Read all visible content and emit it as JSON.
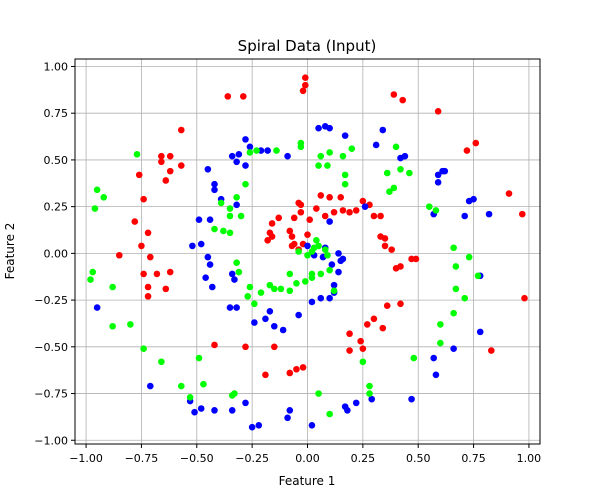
{
  "chart_data": {
    "type": "scatter",
    "title": "Spiral Data (Input)",
    "xlabel": "Feature 1",
    "ylabel": "Feature 2",
    "xlim": [
      -1.05,
      1.05
    ],
    "ylim": [
      -1.02,
      1.04
    ],
    "xticks": [
      -1.0,
      -0.75,
      -0.5,
      -0.25,
      0.0,
      0.25,
      0.5,
      0.75,
      1.0
    ],
    "xtick_labels": [
      "−1.00",
      "−0.75",
      "−0.50",
      "−0.25",
      "0.00",
      "0.25",
      "0.50",
      "0.75",
      "1.00"
    ],
    "yticks": [
      -1.0,
      -0.75,
      -0.5,
      -0.25,
      0.0,
      0.25,
      0.5,
      0.75,
      1.0
    ],
    "ytick_labels": [
      "−1.00",
      "−0.75",
      "−0.50",
      "−0.25",
      "0.00",
      "0.25",
      "0.50",
      "0.75",
      "1.00"
    ],
    "grid": true,
    "legend": "none",
    "series": [
      {
        "color": "#ff0000",
        "points": [
          [
            -0.01,
            0.94
          ],
          [
            -0.01,
            0.9
          ],
          [
            -0.02,
            0.87
          ],
          [
            -0.36,
            0.84
          ],
          [
            -0.29,
            0.84
          ],
          [
            0.39,
            0.85
          ],
          [
            0.43,
            0.82
          ],
          [
            0.59,
            0.76
          ],
          [
            -0.57,
            0.66
          ],
          [
            0.76,
            0.59
          ],
          [
            0.72,
            0.55
          ],
          [
            -0.66,
            0.52
          ],
          [
            -0.62,
            0.52
          ],
          [
            -0.66,
            0.49
          ],
          [
            -0.57,
            0.47
          ],
          [
            -0.62,
            0.44
          ],
          [
            -0.76,
            0.42
          ],
          [
            -0.64,
            0.39
          ],
          [
            0.91,
            0.32
          ],
          [
            -0.74,
            0.29
          ],
          [
            0.06,
            0.31
          ],
          [
            -0.04,
            0.27
          ],
          [
            0.1,
            0.3
          ],
          [
            0.15,
            0.3
          ],
          [
            0.25,
            0.28
          ],
          [
            0.28,
            0.26
          ],
          [
            0.22,
            0.23
          ],
          [
            0.16,
            0.23
          ],
          [
            -0.03,
            0.26
          ],
          [
            0.04,
            0.24
          ],
          [
            0.12,
            0.22
          ],
          [
            0.19,
            0.22
          ],
          [
            0.3,
            0.2
          ],
          [
            0.33,
            0.2
          ],
          [
            0.08,
            0.2
          ],
          [
            -0.03,
            0.22
          ],
          [
            0.01,
            0.18
          ],
          [
            -0.06,
            0.19
          ],
          [
            -0.13,
            0.19
          ],
          [
            -0.16,
            0.16
          ],
          [
            -0.08,
            0.12
          ],
          [
            -0.17,
            0.11
          ],
          [
            0.0,
            0.1
          ],
          [
            -0.16,
            0.09
          ],
          [
            -0.18,
            0.07
          ],
          [
            -0.07,
            0.09
          ],
          [
            -0.06,
            0.05
          ],
          [
            -0.07,
            0.04
          ],
          [
            -0.02,
            0.05
          ],
          [
            -0.04,
            0.02
          ],
          [
            0.33,
            0.09
          ],
          [
            0.35,
            0.08
          ],
          [
            0.35,
            0.04
          ],
          [
            0.38,
            0.02
          ],
          [
            0.4,
            -0.08
          ],
          [
            0.42,
            -0.07
          ],
          [
            0.47,
            -0.03
          ],
          [
            0.49,
            -0.03
          ],
          [
            -0.78,
            0.17
          ],
          [
            -0.72,
            0.11
          ],
          [
            -0.75,
            0.04
          ],
          [
            -0.71,
            -0.02
          ],
          [
            -0.85,
            -0.01
          ],
          [
            -0.74,
            -0.11
          ],
          [
            -0.68,
            -0.11
          ],
          [
            -0.62,
            -0.1
          ],
          [
            -0.72,
            -0.18
          ],
          [
            -0.64,
            -0.19
          ],
          [
            -0.72,
            -0.23
          ],
          [
            0.97,
            0.21
          ],
          [
            0.98,
            -0.24
          ],
          [
            0.83,
            -0.52
          ],
          [
            0.36,
            -0.28
          ],
          [
            0.42,
            -0.27
          ],
          [
            0.3,
            -0.35
          ],
          [
            0.27,
            -0.38
          ],
          [
            0.34,
            -0.4
          ],
          [
            0.19,
            -0.43
          ],
          [
            0.24,
            -0.47
          ],
          [
            0.25,
            -0.51
          ],
          [
            0.19,
            -0.52
          ],
          [
            -0.42,
            -0.49
          ],
          [
            -0.28,
            -0.5
          ],
          [
            -0.15,
            -0.5
          ],
          [
            -0.19,
            -0.65
          ],
          [
            -0.08,
            -0.64
          ],
          [
            -0.05,
            -0.62
          ],
          [
            -0.02,
            -0.61
          ]
        ]
      },
      {
        "color": "#0000ff",
        "points": [
          [
            0.08,
            0.68
          ],
          [
            0.1,
            0.67
          ],
          [
            0.05,
            0.67
          ],
          [
            0.17,
            0.63
          ],
          [
            0.34,
            0.66
          ],
          [
            0.31,
            0.58
          ],
          [
            0.44,
            0.52
          ],
          [
            0.42,
            0.51
          ],
          [
            -0.28,
            0.61
          ],
          [
            -0.26,
            0.57
          ],
          [
            -0.21,
            0.55
          ],
          [
            -0.18,
            0.55
          ],
          [
            -0.31,
            0.53
          ],
          [
            -0.34,
            0.52
          ],
          [
            -0.32,
            0.49
          ],
          [
            -0.28,
            0.47
          ],
          [
            -0.45,
            0.45
          ],
          [
            -0.42,
            0.37
          ],
          [
            -0.42,
            0.34
          ],
          [
            -0.39,
            0.29
          ],
          [
            -0.44,
            0.18
          ],
          [
            -0.52,
            0.04
          ],
          [
            -0.48,
            0.05
          ],
          [
            -0.45,
            -0.02
          ],
          [
            -0.44,
            -0.06
          ],
          [
            -0.46,
            -0.13
          ],
          [
            -0.43,
            -0.18
          ],
          [
            -0.34,
            -0.11
          ],
          [
            -0.33,
            -0.14
          ],
          [
            -0.32,
            -0.29
          ],
          [
            -0.35,
            -0.29
          ],
          [
            -0.24,
            -0.37
          ],
          [
            -0.19,
            -0.35
          ],
          [
            -0.17,
            -0.31
          ],
          [
            -0.15,
            -0.39
          ],
          [
            -0.11,
            -0.41
          ],
          [
            -0.04,
            -0.33
          ],
          [
            0.02,
            -0.26
          ],
          [
            0.06,
            -0.24
          ],
          [
            0.1,
            -0.24
          ],
          [
            0.12,
            -0.21
          ],
          [
            0.12,
            -0.17
          ],
          [
            0.14,
            -0.1
          ],
          [
            0.11,
            -0.06
          ],
          [
            0.15,
            -0.04
          ],
          [
            0.16,
            -0.03
          ],
          [
            0.14,
            0.0
          ],
          [
            0.08,
            0.03
          ],
          [
            0.07,
            -0.02
          ],
          [
            0.03,
            -0.01
          ],
          [
            0.0,
            0.04
          ],
          [
            0.57,
            0.21
          ],
          [
            0.61,
            0.44
          ],
          [
            0.62,
            0.44
          ],
          [
            0.59,
            0.42
          ],
          [
            0.59,
            0.38
          ],
          [
            0.71,
            0.2
          ],
          [
            0.75,
            0.29
          ],
          [
            0.73,
            0.28
          ],
          [
            0.82,
            0.21
          ],
          [
            0.78,
            -0.12
          ],
          [
            0.78,
            -0.42
          ],
          [
            0.66,
            -0.51
          ],
          [
            0.57,
            -0.56
          ],
          [
            0.58,
            -0.65
          ],
          [
            0.47,
            -0.78
          ],
          [
            0.29,
            -0.78
          ],
          [
            0.22,
            -0.8
          ],
          [
            0.18,
            -0.84
          ],
          [
            0.17,
            -0.82
          ],
          [
            0.02,
            -0.92
          ],
          [
            -0.09,
            -0.88
          ],
          [
            -0.08,
            -0.84
          ],
          [
            -0.22,
            -0.92
          ],
          [
            -0.25,
            -0.93
          ],
          [
            -0.28,
            -0.8
          ],
          [
            -0.34,
            -0.84
          ],
          [
            -0.42,
            -0.84
          ],
          [
            -0.48,
            -0.83
          ],
          [
            -0.51,
            -0.85
          ],
          [
            -0.53,
            -0.79
          ],
          [
            -0.71,
            -0.71
          ],
          [
            -0.95,
            -0.29
          ],
          [
            -0.09,
            0.52
          ],
          [
            0.26,
            0.25
          ],
          [
            0.1,
            0.17
          ],
          [
            -0.32,
            0.26
          ],
          [
            -0.49,
            0.18
          ]
        ]
      },
      {
        "color": "#00ff00",
        "points": [
          [
            -0.77,
            0.53
          ],
          [
            -0.95,
            0.34
          ],
          [
            -0.96,
            0.24
          ],
          [
            -0.92,
            0.3
          ],
          [
            -0.97,
            -0.1
          ],
          [
            -0.98,
            -0.14
          ],
          [
            -0.88,
            -0.18
          ],
          [
            -0.8,
            -0.38
          ],
          [
            -0.88,
            -0.39
          ],
          [
            -0.74,
            -0.51
          ],
          [
            -0.66,
            -0.58
          ],
          [
            -0.57,
            -0.71
          ],
          [
            -0.53,
            -0.77
          ],
          [
            -0.47,
            -0.7
          ],
          [
            -0.33,
            -0.75
          ],
          [
            -0.34,
            -0.76
          ],
          [
            0.05,
            -0.75
          ],
          [
            0.1,
            -0.86
          ],
          [
            0.28,
            -0.71
          ],
          [
            0.28,
            -0.75
          ],
          [
            0.48,
            -0.56
          ],
          [
            0.6,
            -0.38
          ],
          [
            0.6,
            -0.48
          ],
          [
            0.66,
            -0.32
          ],
          [
            0.71,
            -0.24
          ],
          [
            0.67,
            -0.19
          ],
          [
            0.73,
            -0.02
          ],
          [
            0.66,
            0.03
          ],
          [
            0.67,
            -0.07
          ],
          [
            0.58,
            0.23
          ],
          [
            0.4,
            0.57
          ],
          [
            0.36,
            0.43
          ],
          [
            0.42,
            0.45
          ],
          [
            0.46,
            0.43
          ],
          [
            0.39,
            0.35
          ],
          [
            0.37,
            0.33
          ],
          [
            0.17,
            0.42
          ],
          [
            0.17,
            0.37
          ],
          [
            0.2,
            0.56
          ],
          [
            0.16,
            0.52
          ],
          [
            0.05,
            0.47
          ],
          [
            0.06,
            0.52
          ],
          [
            0.09,
            0.47
          ],
          [
            -0.03,
            0.57
          ],
          [
            -0.03,
            0.59
          ],
          [
            -0.14,
            0.55
          ],
          [
            -0.26,
            0.54
          ],
          [
            -0.28,
            0.37
          ],
          [
            -0.32,
            0.3
          ],
          [
            -0.3,
            0.2
          ],
          [
            -0.35,
            0.24
          ],
          [
            -0.39,
            0.27
          ],
          [
            -0.42,
            0.13
          ],
          [
            -0.38,
            0.12
          ],
          [
            -0.35,
            0.11
          ],
          [
            -0.35,
            0.2
          ],
          [
            -0.32,
            -0.05
          ],
          [
            -0.31,
            -0.1
          ],
          [
            -0.26,
            -0.18
          ],
          [
            -0.27,
            -0.23
          ],
          [
            -0.24,
            -0.27
          ],
          [
            -0.21,
            -0.21
          ],
          [
            -0.17,
            -0.17
          ],
          [
            -0.15,
            -0.19
          ],
          [
            -0.12,
            -0.19
          ],
          [
            -0.08,
            -0.2
          ],
          [
            -0.01,
            -0.15
          ],
          [
            0.02,
            -0.11
          ],
          [
            0.02,
            -0.13
          ],
          [
            0.06,
            -0.11
          ],
          [
            0.1,
            -0.09
          ],
          [
            0.08,
            0.02
          ],
          [
            0.09,
            -0.01
          ],
          [
            0.05,
            0.04
          ],
          [
            0.04,
            0.07
          ],
          [
            0.02,
            0.01
          ],
          [
            0.0,
            -0.01
          ],
          [
            0.03,
            0.03
          ],
          [
            -0.05,
            -0.16
          ],
          [
            -0.08,
            -0.11
          ],
          [
            0.77,
            -0.12
          ],
          [
            0.55,
            0.25
          ],
          [
            -0.23,
            0.55
          ],
          [
            0.1,
            0.54
          ],
          [
            -0.49,
            -0.56
          ],
          [
            -0.04,
            0.01
          ],
          [
            0.12,
            -0.2
          ],
          [
            0.25,
            -0.58
          ]
        ]
      }
    ]
  }
}
